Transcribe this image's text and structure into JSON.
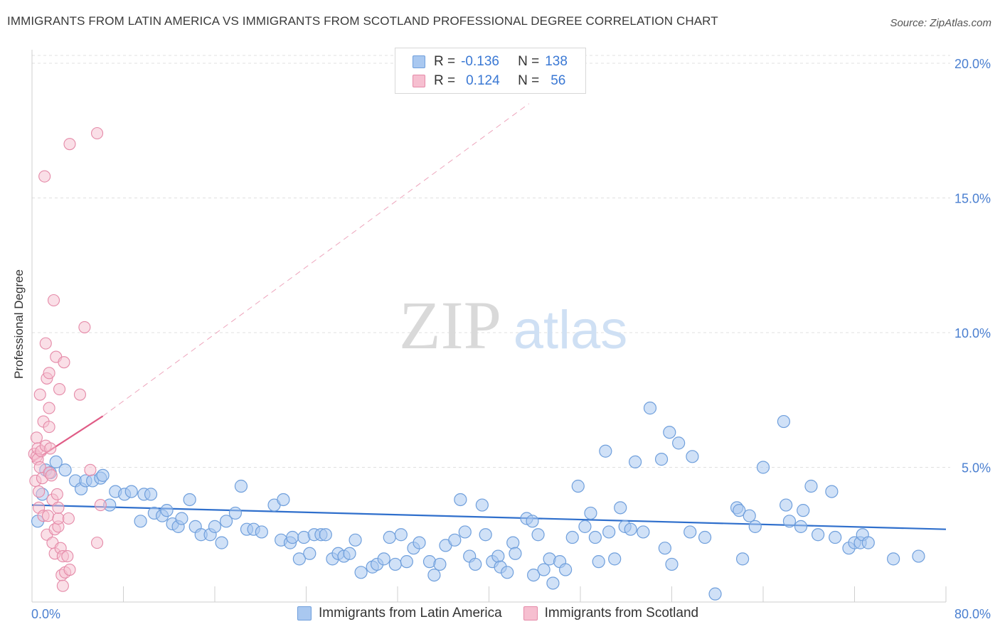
{
  "title": "IMMIGRANTS FROM LATIN AMERICA VS IMMIGRANTS FROM SCOTLAND PROFESSIONAL DEGREE CORRELATION CHART",
  "source": "Source: ZipAtlas.com",
  "watermark": {
    "zip": "ZIP",
    "atlas": "atlas"
  },
  "legend": {
    "rows": [
      {
        "r_label": "R =",
        "r_value": "-0.136",
        "n_label": "N =",
        "n_value": "138"
      },
      {
        "r_label": "R =",
        "r_value": "0.124",
        "n_label": "N =",
        "n_value": "56"
      }
    ]
  },
  "bottom_legend": {
    "series1": "Immigrants from Latin America",
    "series2": "Immigrants from Scotland"
  },
  "colors": {
    "blue_fill": "#a9c8f0",
    "blue_stroke": "#6f9fdc",
    "blue_line": "#2f6fcc",
    "pink_fill": "#f6bfd0",
    "pink_stroke": "#e58aa8",
    "pink_line": "#e05c86",
    "grid": "#e0e0e0",
    "axis_text": "#4a7fd0"
  },
  "chart_data": {
    "type": "scatter",
    "title": "IMMIGRANTS FROM LATIN AMERICA VS IMMIGRANTS FROM SCOTLAND PROFESSIONAL DEGREE CORRELATION CHART",
    "xlabel": "",
    "ylabel": "Professional Degree",
    "xlim": [
      0,
      80
    ],
    "ylim": [
      0,
      20.5
    ],
    "x_tick_labels": [
      "0.0%",
      "80.0%"
    ],
    "y_ticks": [
      5,
      10,
      15,
      20
    ],
    "y_tick_labels": [
      "5.0%",
      "10.0%",
      "15.0%",
      "20.0%"
    ],
    "grid": true,
    "legend_position": "top-center",
    "series": [
      {
        "name": "Immigrants from Latin America",
        "r": -0.136,
        "n": 138,
        "trend": {
          "x": [
            0,
            80
          ],
          "y": [
            3.6,
            2.7
          ],
          "style": "solid"
        },
        "points": [
          [
            0.5,
            3.0
          ],
          [
            0.9,
            4.0
          ],
          [
            1.2,
            4.9
          ],
          [
            1.6,
            4.8
          ],
          [
            2.1,
            5.2
          ],
          [
            2.9,
            4.9
          ],
          [
            3.8,
            4.5
          ],
          [
            4.3,
            4.2
          ],
          [
            4.7,
            4.5
          ],
          [
            5.3,
            4.5
          ],
          [
            6.0,
            4.6
          ],
          [
            6.2,
            4.7
          ],
          [
            6.8,
            3.6
          ],
          [
            7.3,
            4.1
          ],
          [
            8.1,
            4.0
          ],
          [
            8.7,
            4.1
          ],
          [
            9.5,
            3.0
          ],
          [
            9.8,
            4.0
          ],
          [
            10.4,
            4.0
          ],
          [
            10.7,
            3.3
          ],
          [
            11.4,
            3.2
          ],
          [
            11.8,
            3.4
          ],
          [
            12.3,
            2.9
          ],
          [
            12.8,
            2.8
          ],
          [
            13.1,
            3.1
          ],
          [
            13.8,
            3.8
          ],
          [
            14.3,
            2.8
          ],
          [
            14.8,
            2.5
          ],
          [
            15.6,
            2.5
          ],
          [
            16.0,
            2.8
          ],
          [
            16.6,
            2.2
          ],
          [
            17.0,
            3.0
          ],
          [
            17.8,
            3.3
          ],
          [
            18.3,
            4.3
          ],
          [
            18.8,
            2.7
          ],
          [
            19.4,
            2.7
          ],
          [
            20.1,
            2.6
          ],
          [
            21.2,
            3.6
          ],
          [
            21.8,
            2.3
          ],
          [
            22.0,
            3.8
          ],
          [
            22.6,
            2.2
          ],
          [
            22.8,
            2.4
          ],
          [
            23.4,
            1.6
          ],
          [
            23.8,
            2.4
          ],
          [
            24.3,
            1.8
          ],
          [
            24.7,
            2.5
          ],
          [
            25.3,
            2.5
          ],
          [
            25.7,
            2.5
          ],
          [
            26.3,
            1.6
          ],
          [
            26.8,
            1.8
          ],
          [
            27.3,
            1.7
          ],
          [
            27.8,
            1.8
          ],
          [
            28.3,
            2.3
          ],
          [
            28.8,
            1.1
          ],
          [
            29.8,
            1.3
          ],
          [
            30.2,
            1.4
          ],
          [
            30.8,
            1.6
          ],
          [
            31.3,
            2.4
          ],
          [
            31.8,
            1.4
          ],
          [
            32.3,
            2.5
          ],
          [
            32.8,
            1.5
          ],
          [
            33.4,
            2.0
          ],
          [
            33.9,
            2.2
          ],
          [
            34.8,
            1.5
          ],
          [
            35.2,
            1.0
          ],
          [
            35.7,
            1.4
          ],
          [
            36.2,
            2.1
          ],
          [
            37.0,
            2.3
          ],
          [
            37.5,
            3.8
          ],
          [
            37.9,
            2.6
          ],
          [
            38.3,
            1.7
          ],
          [
            38.8,
            1.4
          ],
          [
            39.4,
            3.6
          ],
          [
            39.7,
            2.5
          ],
          [
            40.3,
            1.5
          ],
          [
            40.8,
            1.7
          ],
          [
            41.0,
            1.3
          ],
          [
            41.6,
            1.1
          ],
          [
            42.1,
            2.2
          ],
          [
            42.3,
            1.8
          ],
          [
            43.3,
            3.1
          ],
          [
            43.8,
            3.0
          ],
          [
            43.9,
            1.0
          ],
          [
            44.3,
            2.5
          ],
          [
            44.8,
            1.2
          ],
          [
            45.3,
            1.6
          ],
          [
            45.6,
            0.7
          ],
          [
            46.2,
            1.5
          ],
          [
            46.7,
            1.2
          ],
          [
            47.3,
            2.4
          ],
          [
            47.8,
            4.3
          ],
          [
            48.4,
            2.8
          ],
          [
            48.9,
            3.3
          ],
          [
            49.3,
            2.4
          ],
          [
            49.6,
            1.5
          ],
          [
            50.2,
            5.6
          ],
          [
            50.5,
            2.6
          ],
          [
            51.0,
            1.6
          ],
          [
            51.5,
            3.5
          ],
          [
            51.9,
            2.8
          ],
          [
            52.4,
            2.7
          ],
          [
            52.8,
            5.2
          ],
          [
            53.5,
            2.6
          ],
          [
            54.1,
            7.2
          ],
          [
            55.1,
            5.3
          ],
          [
            55.4,
            2.0
          ],
          [
            55.8,
            6.3
          ],
          [
            56.0,
            1.4
          ],
          [
            56.6,
            5.9
          ],
          [
            57.6,
            2.6
          ],
          [
            57.8,
            5.4
          ],
          [
            58.9,
            2.4
          ],
          [
            59.8,
            0.3
          ],
          [
            61.7,
            3.5
          ],
          [
            61.9,
            3.4
          ],
          [
            62.2,
            1.6
          ],
          [
            62.8,
            3.2
          ],
          [
            63.3,
            2.8
          ],
          [
            64.0,
            5.0
          ],
          [
            65.8,
            6.7
          ],
          [
            66.0,
            3.6
          ],
          [
            66.3,
            3.0
          ],
          [
            67.3,
            2.8
          ],
          [
            67.5,
            3.4
          ],
          [
            68.2,
            4.3
          ],
          [
            68.8,
            2.5
          ],
          [
            70.0,
            4.1
          ],
          [
            70.3,
            2.4
          ],
          [
            71.5,
            2.0
          ],
          [
            72.0,
            2.2
          ],
          [
            72.5,
            2.2
          ],
          [
            72.7,
            2.5
          ],
          [
            73.2,
            2.2
          ],
          [
            75.4,
            1.6
          ],
          [
            77.6,
            1.7
          ]
        ]
      },
      {
        "name": "Immigrants from Scotland",
        "r": 0.124,
        "n": 56,
        "trend": {
          "x": [
            0,
            6.2
          ],
          "y": [
            5.2,
            6.9
          ],
          "style": "solid"
        },
        "trend_ext": {
          "x": [
            6.2,
            43.5
          ],
          "y": [
            6.9,
            18.5
          ],
          "style": "dashed"
        },
        "points": [
          [
            0.2,
            5.5
          ],
          [
            0.3,
            4.5
          ],
          [
            0.4,
            5.4
          ],
          [
            0.4,
            6.1
          ],
          [
            0.5,
            5.7
          ],
          [
            0.5,
            5.3
          ],
          [
            0.6,
            4.1
          ],
          [
            0.6,
            3.5
          ],
          [
            0.7,
            5.0
          ],
          [
            0.7,
            7.7
          ],
          [
            0.8,
            5.6
          ],
          [
            0.9,
            4.6
          ],
          [
            1.0,
            3.2
          ],
          [
            1.0,
            6.7
          ],
          [
            1.1,
            15.8
          ],
          [
            1.2,
            9.6
          ],
          [
            1.2,
            5.8
          ],
          [
            1.3,
            8.3
          ],
          [
            1.3,
            2.5
          ],
          [
            1.4,
            3.2
          ],
          [
            1.5,
            6.5
          ],
          [
            1.5,
            4.8
          ],
          [
            1.5,
            8.5
          ],
          [
            1.5,
            7.2
          ],
          [
            1.6,
            5.7
          ],
          [
            1.7,
            4.7
          ],
          [
            1.8,
            2.2
          ],
          [
            1.8,
            3.8
          ],
          [
            1.9,
            11.2
          ],
          [
            2.0,
            1.8
          ],
          [
            2.0,
            2.7
          ],
          [
            2.1,
            9.1
          ],
          [
            2.2,
            4.0
          ],
          [
            2.3,
            2.8
          ],
          [
            2.3,
            3.1
          ],
          [
            2.3,
            3.5
          ],
          [
            2.4,
            7.9
          ],
          [
            2.5,
            2.0
          ],
          [
            2.6,
            1.0
          ],
          [
            2.7,
            0.6
          ],
          [
            2.7,
            1.7
          ],
          [
            2.8,
            8.9
          ],
          [
            2.9,
            1.1
          ],
          [
            3.1,
            1.7
          ],
          [
            3.2,
            3.1
          ],
          [
            3.3,
            17.0
          ],
          [
            3.3,
            1.2
          ],
          [
            4.2,
            7.7
          ],
          [
            4.6,
            10.2
          ],
          [
            5.1,
            4.9
          ],
          [
            5.7,
            2.2
          ],
          [
            5.7,
            17.4
          ],
          [
            6.0,
            3.6
          ]
        ]
      }
    ]
  }
}
